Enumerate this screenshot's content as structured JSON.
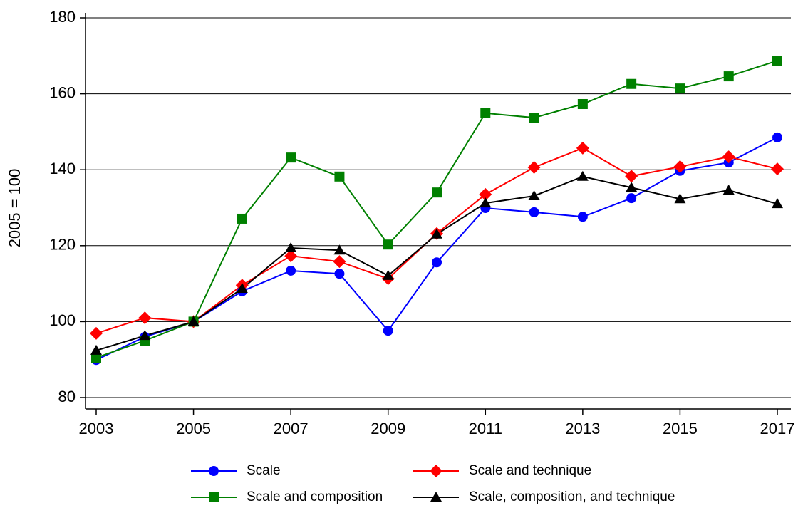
{
  "chart_data": {
    "type": "line",
    "ylabel": "2005 = 100",
    "x": [
      2003,
      2004,
      2005,
      2006,
      2007,
      2008,
      2009,
      2010,
      2011,
      2012,
      2013,
      2014,
      2015,
      2016,
      2017
    ],
    "xlim": [
      2003,
      2017
    ],
    "xticks": [
      2003,
      2005,
      2007,
      2009,
      2011,
      2013,
      2015,
      2017
    ],
    "ylim": [
      80,
      180
    ],
    "yticks": [
      80,
      100,
      120,
      140,
      160,
      180
    ],
    "grid": true,
    "legend": "bottom",
    "series": [
      {
        "name": "Scale",
        "color": "#0000ff",
        "marker": "circle",
        "values": [
          89.9,
          96,
          100,
          108,
          113.4,
          112.6,
          97.6,
          115.6,
          129.9,
          128.8,
          127.6,
          132.5,
          139.7,
          141.9,
          148.5
        ]
      },
      {
        "name": "Scale and technique",
        "color": "#ff0000",
        "marker": "diamond",
        "values": [
          96.9,
          101,
          100,
          109.6,
          117.3,
          115.8,
          111.3,
          123.2,
          133.5,
          140.6,
          145.7,
          138.3,
          140.8,
          143.4,
          140.2
        ]
      },
      {
        "name": "Scale and composition",
        "color": "#008000",
        "marker": "square",
        "values": [
          90.5,
          95,
          100,
          127.1,
          143.2,
          138.2,
          120.3,
          134,
          154.9,
          153.7,
          157.3,
          162.6,
          161.4,
          164.6,
          168.7
        ]
      },
      {
        "name": "Scale, composition, and technique",
        "color": "#000000",
        "marker": "triangle",
        "values": [
          92.4,
          96.3,
          100,
          108.7,
          119.4,
          118.8,
          112.1,
          123,
          131.2,
          133.1,
          138.2,
          135.3,
          132.3,
          134.6,
          131
        ]
      }
    ]
  }
}
